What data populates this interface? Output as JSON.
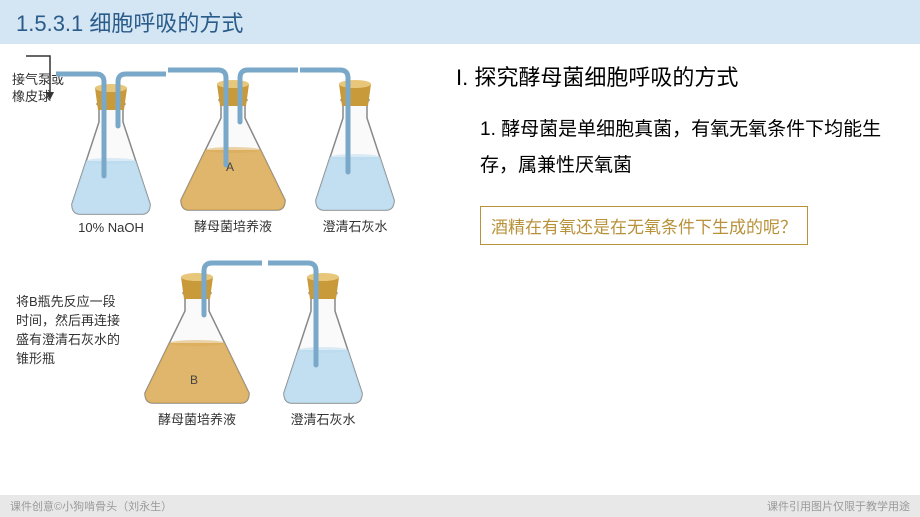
{
  "header": {
    "title": "1.5.3.1 细胞呼吸的方式"
  },
  "right": {
    "section_title": "I. 探究酵母菌细胞呼吸的方式",
    "body_text": "1. 酵母菌是单细胞真菌，有氧无氧条件下均能生存，属兼性厌氧菌",
    "boxed_text": "酒精在有氧还是在无氧条件下生成的呢？"
  },
  "diagram1": {
    "pump_label": "接气泵或\n橡皮球",
    "flask1": {
      "label": "10% NaOH",
      "liquid_color": "#b7d9ef",
      "inner": ""
    },
    "flask2": {
      "label": "酵母菌培养液",
      "liquid_color": "#d9a952",
      "inner": "A"
    },
    "flask3": {
      "label": "澄清石灰水",
      "liquid_color": "#b7d9ef",
      "inner": ""
    }
  },
  "diagram2": {
    "note": "将B瓶先反应一段时间，然后再连接盛有澄清石灰水的锥形瓶",
    "flask1": {
      "label": "酵母菌培养液",
      "liquid_color": "#d9a952",
      "inner": "B"
    },
    "flask2": {
      "label": "澄清石灰水",
      "liquid_color": "#b7d9ef",
      "inner": ""
    }
  },
  "footer": {
    "left": "课件创意©小狗啃骨头（刘永生）",
    "right": "课件引用图片仅限于教学用途"
  },
  "colors": {
    "stopper": "#c99a3a",
    "stopper_light": "#e8c77a",
    "tube": "#7aa8c8",
    "flask_outline": "#888",
    "flask_fill": "#fafafa"
  }
}
